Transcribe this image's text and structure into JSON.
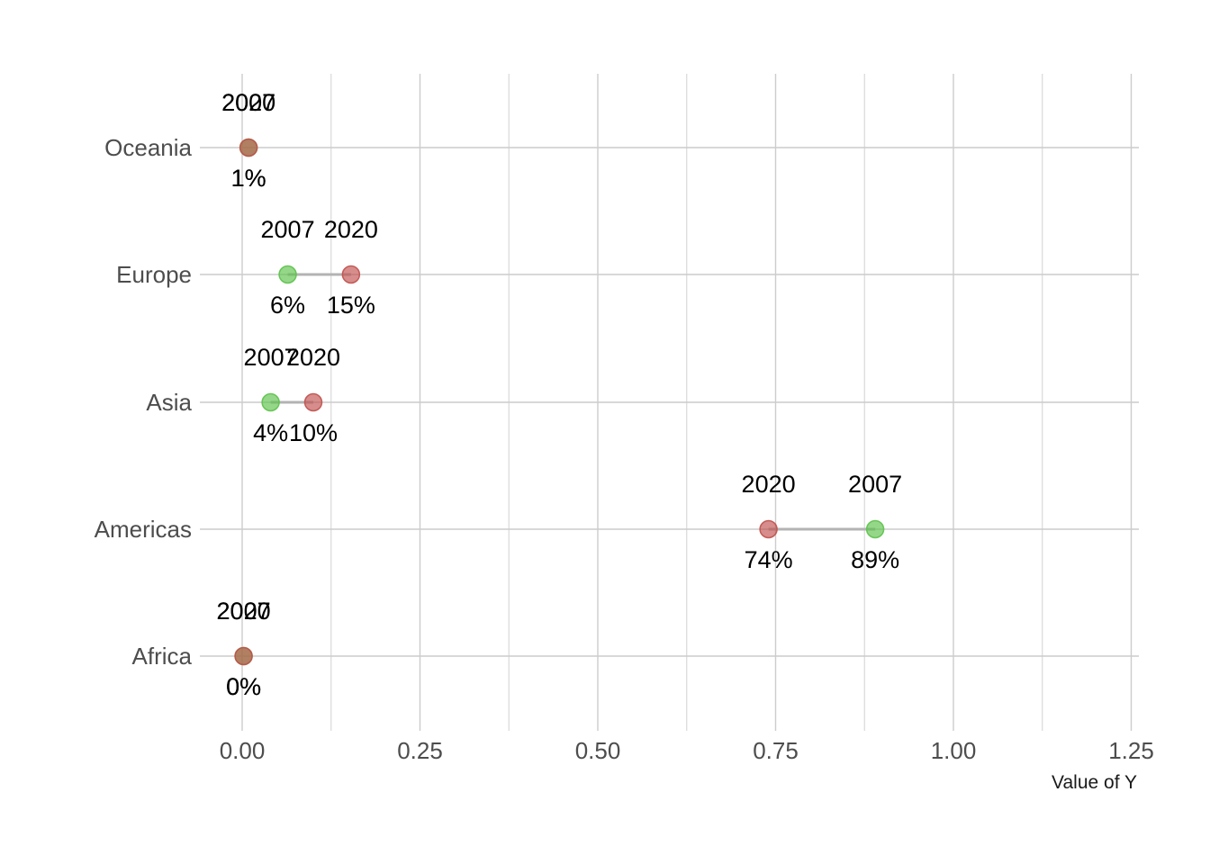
{
  "chart_data": {
    "type": "scatter",
    "subtype": "dumbbell",
    "xlabel": "Value of Y",
    "ylabel": "",
    "xlim": [
      -0.03,
      1.26
    ],
    "x_ticks": [
      0.0,
      0.25,
      0.5,
      0.75,
      1.0,
      1.25
    ],
    "x_tick_labels": [
      "0.00",
      "0.25",
      "0.50",
      "0.75",
      "1.00",
      "1.25"
    ],
    "categories": [
      "Africa",
      "Americas",
      "Asia",
      "Europe",
      "Oceania"
    ],
    "series": [
      {
        "name": "2007",
        "color": "#5cc24a",
        "values": [
          0.002,
          0.89,
          0.04,
          0.064,
          0.009
        ],
        "labels": [
          "0%",
          "89%",
          "4%",
          "6%",
          "1%"
        ]
      },
      {
        "name": "2020",
        "color": "#c0504d",
        "values": [
          0.002,
          0.74,
          0.1,
          0.153,
          0.009
        ],
        "labels": [
          "0%",
          "74%",
          "10%",
          "15%",
          "1%"
        ]
      }
    ],
    "connector_color": "#b3b3b3",
    "grid": true,
    "legend": "none"
  }
}
